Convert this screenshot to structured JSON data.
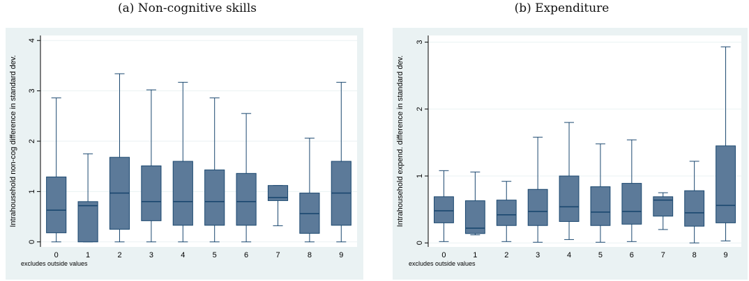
{
  "chart_data": [
    {
      "type": "box",
      "caption": "(a) Non-cognitive skills",
      "ylabel": "Intrahousehold non-cog difference in standard dev.",
      "note": "excludes outside values",
      "ylim": [
        -0.1,
        4.1
      ],
      "yticks": [
        0,
        1,
        2,
        3,
        4
      ],
      "categories": [
        "0",
        "1",
        "2",
        "3",
        "4",
        "5",
        "6",
        "7",
        "8",
        "9"
      ],
      "boxes": [
        {
          "min": 0.0,
          "q1": 0.18,
          "median": 0.63,
          "q3": 1.29,
          "max": 2.86
        },
        {
          "min": 0.0,
          "q1": 0.0,
          "median": 0.72,
          "q3": 0.8,
          "max": 1.75
        },
        {
          "min": 0.0,
          "q1": 0.25,
          "median": 0.97,
          "q3": 1.68,
          "max": 3.34
        },
        {
          "min": 0.0,
          "q1": 0.42,
          "median": 0.8,
          "q3": 1.51,
          "max": 3.02
        },
        {
          "min": 0.0,
          "q1": 0.33,
          "median": 0.8,
          "q3": 1.6,
          "max": 3.17
        },
        {
          "min": 0.0,
          "q1": 0.33,
          "median": 0.8,
          "q3": 1.43,
          "max": 2.86
        },
        {
          "min": 0.0,
          "q1": 0.33,
          "median": 0.8,
          "q3": 1.36,
          "max": 2.55
        },
        {
          "min": 0.32,
          "q1": 0.82,
          "median": 0.88,
          "q3": 1.12,
          "max": 1.12
        },
        {
          "min": 0.0,
          "q1": 0.17,
          "median": 0.56,
          "q3": 0.97,
          "max": 2.06
        },
        {
          "min": 0.0,
          "q1": 0.33,
          "median": 0.97,
          "q3": 1.6,
          "max": 3.17
        }
      ]
    },
    {
      "type": "box",
      "caption": "(b) Expenditure",
      "ylabel": "Intrahousehold expend. difference in standard dev.",
      "note": "excludes outside values",
      "ylim": [
        -0.06,
        3.1
      ],
      "yticks": [
        0,
        1,
        2,
        3
      ],
      "categories": [
        "0",
        "1",
        "2",
        "3",
        "4",
        "5",
        "6",
        "7",
        "8",
        "9"
      ],
      "boxes": [
        {
          "min": 0.02,
          "q1": 0.3,
          "median": 0.48,
          "q3": 0.69,
          "max": 1.08
        },
        {
          "min": 0.12,
          "q1": 0.14,
          "median": 0.22,
          "q3": 0.63,
          "max": 1.06
        },
        {
          "min": 0.02,
          "q1": 0.26,
          "median": 0.42,
          "q3": 0.64,
          "max": 0.92
        },
        {
          "min": 0.01,
          "q1": 0.26,
          "median": 0.47,
          "q3": 0.8,
          "max": 1.58
        },
        {
          "min": 0.05,
          "q1": 0.32,
          "median": 0.54,
          "q3": 1.0,
          "max": 1.8
        },
        {
          "min": 0.01,
          "q1": 0.26,
          "median": 0.46,
          "q3": 0.84,
          "max": 1.48
        },
        {
          "min": 0.02,
          "q1": 0.28,
          "median": 0.47,
          "q3": 0.89,
          "max": 1.54
        },
        {
          "min": 0.2,
          "q1": 0.4,
          "median": 0.64,
          "q3": 0.69,
          "max": 0.75
        },
        {
          "min": 0.0,
          "q1": 0.25,
          "median": 0.45,
          "q3": 0.78,
          "max": 1.22
        },
        {
          "min": 0.03,
          "q1": 0.3,
          "median": 0.56,
          "q3": 1.45,
          "max": 2.93
        }
      ]
    }
  ],
  "style": {
    "outer_bg": "#eaf2f3",
    "plot_bg": "#ffffff",
    "box_fill": "#5c7a99",
    "box_stroke": "#1a476f",
    "grid_color": "#eaf2f3"
  }
}
